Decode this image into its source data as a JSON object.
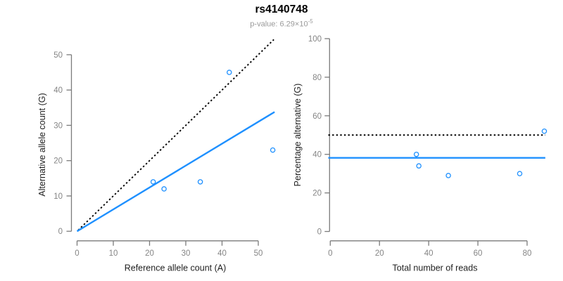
{
  "header": {
    "title": "rs4140748",
    "subtitle_prefix": "p-value: 6.29×10",
    "subtitle_exponent": "-5"
  },
  "colors": {
    "point_blue": "#1E90FF",
    "line_blue": "#1E90FF",
    "dotted_black": "#000000",
    "axis_gray": "#7b7b7b",
    "tick_label_gray": "#858585",
    "axis_title_dark": "#1f1f1f",
    "background": "#ffffff"
  },
  "chart_data": [
    {
      "name": "allele-counts",
      "type": "scatter",
      "xlabel": "Reference allele count (A)",
      "ylabel": "Alternative allele count (G)",
      "xticks": [
        0,
        10,
        20,
        30,
        40,
        50
      ],
      "yticks": [
        0,
        10,
        20,
        30,
        40,
        50
      ],
      "xlim": [
        0,
        54.5
      ],
      "ylim": [
        0,
        54.5
      ],
      "grid": false,
      "points": [
        [
          21,
          14
        ],
        [
          24,
          12
        ],
        [
          34,
          14
        ],
        [
          42,
          45
        ],
        [
          54,
          23
        ]
      ],
      "lines": [
        {
          "name": "identity-line",
          "style": "dotted",
          "slope": 1,
          "intercept": 0,
          "x1": 0.3,
          "x2": 54.3
        },
        {
          "name": "fit-line",
          "style": "solid",
          "slope": 0.62,
          "intercept": 0,
          "x1": 0,
          "x2": 54.5
        }
      ]
    },
    {
      "name": "percentage-alternative",
      "type": "scatter",
      "xlabel": "Total number of reads",
      "ylabel": "Percentage alternative (G)",
      "xticks": [
        0,
        20,
        40,
        60,
        80
      ],
      "yticks": [
        0,
        20,
        40,
        60,
        80,
        100
      ],
      "xlim": [
        0,
        87.4
      ],
      "ylim": [
        0,
        100
      ],
      "grid": false,
      "points": [
        [
          35,
          40
        ],
        [
          36,
          34
        ],
        [
          48,
          29
        ],
        [
          77,
          30
        ],
        [
          87,
          52
        ]
      ],
      "lines": [
        {
          "name": "expected-50pct-line",
          "style": "dotted",
          "y": 50,
          "x1": -0.8,
          "x2": 87.4
        },
        {
          "name": "mean-percentage-line",
          "style": "solid",
          "y": 38.2,
          "x1": -0.8,
          "x2": 87.4
        }
      ]
    }
  ]
}
